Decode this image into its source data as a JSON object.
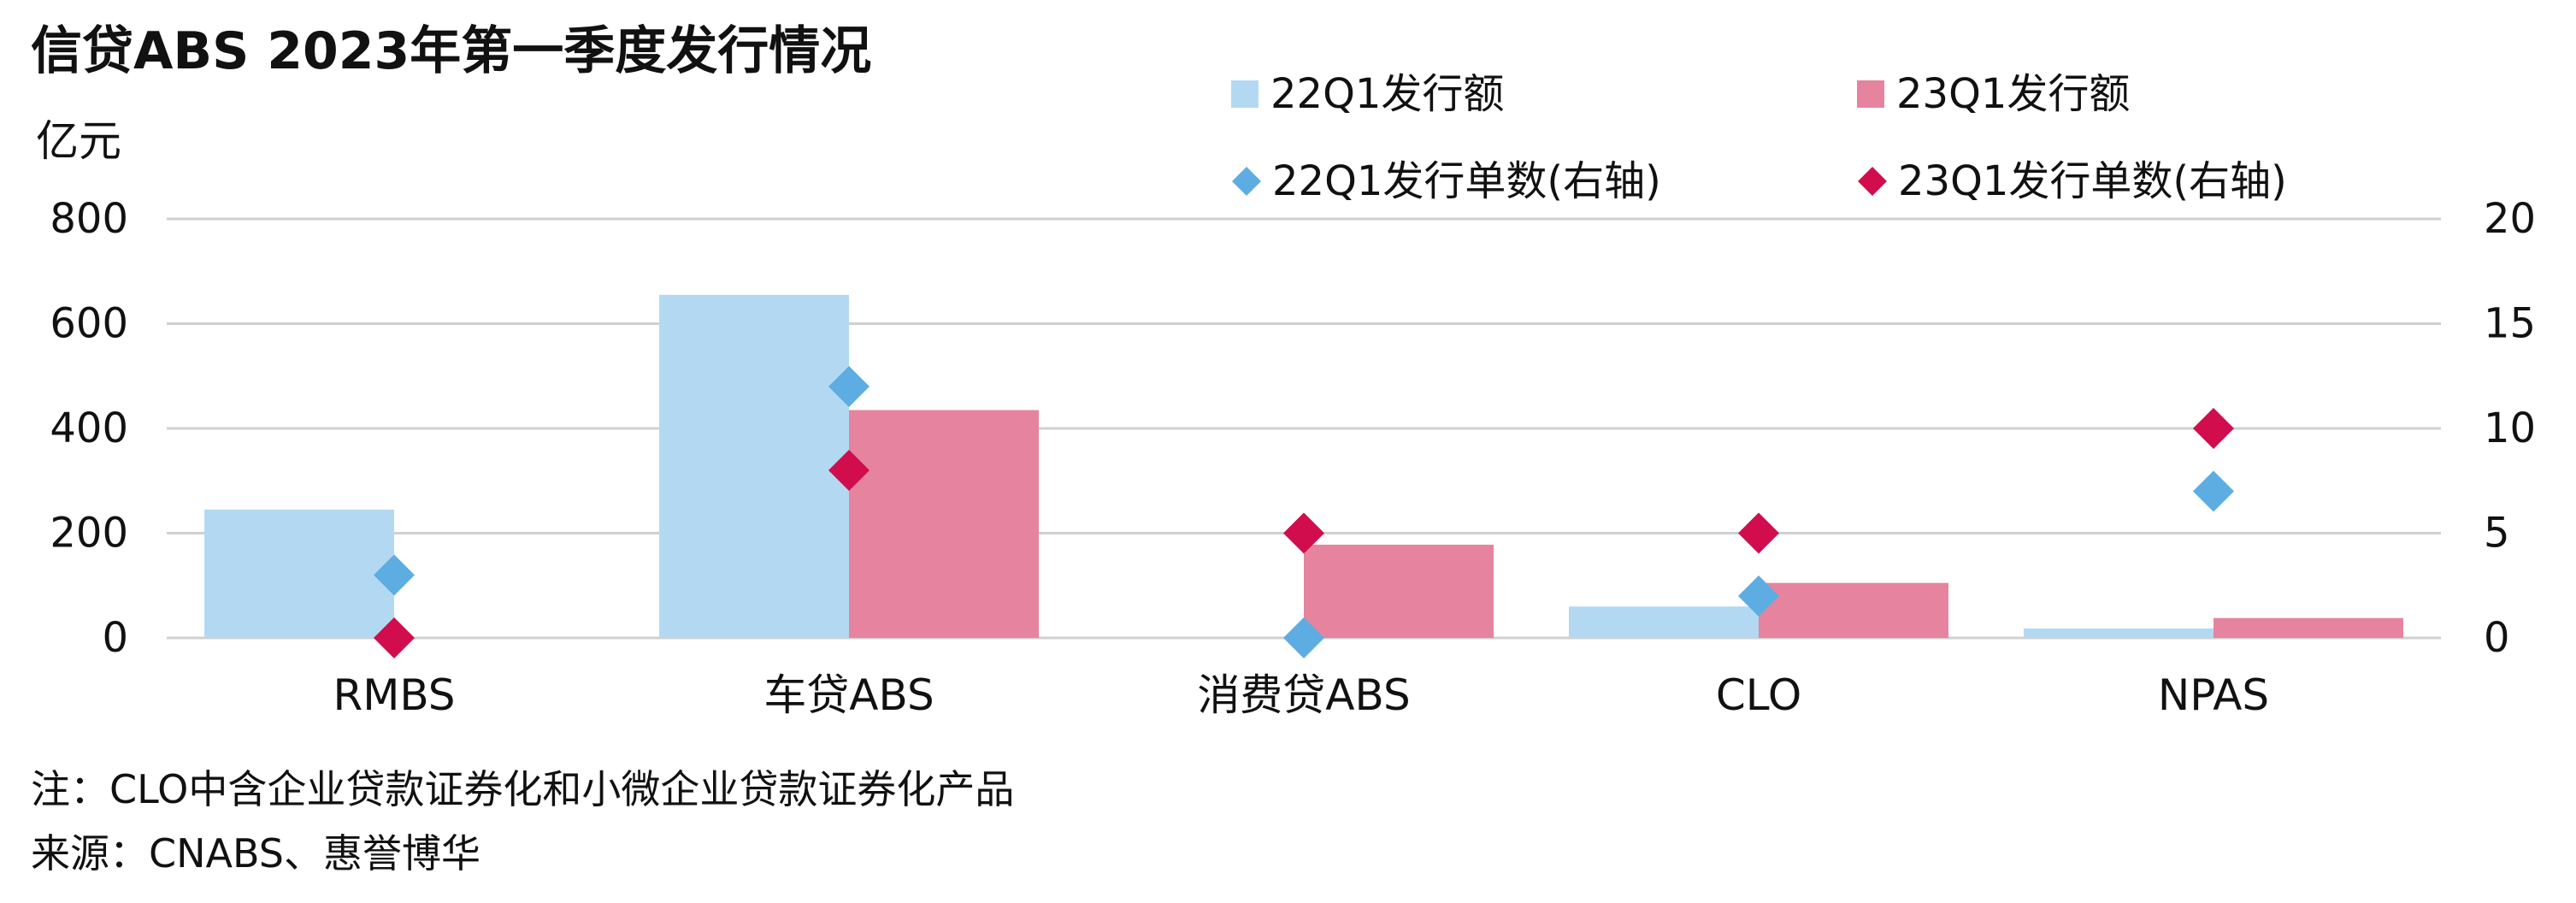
{
  "title": "信贷ABS 2023年第一季度发行情况",
  "unit": "亿元",
  "note": "注：CLO中含企业贷款证券化和小微企业贷款证券化产品",
  "source": "来源：CNABS、惠誉博华",
  "legend": [
    {
      "label": "22Q1发行额",
      "shape": "square",
      "color": "#B3D9F2"
    },
    {
      "label": "23Q1发行额",
      "shape": "square",
      "color": "#E6849F"
    },
    {
      "label": "22Q1发行单数(右轴)",
      "shape": "diamond",
      "color": "#5DADE2"
    },
    {
      "label": "23Q1发行单数(右轴)",
      "shape": "diamond",
      "color": "#D10D4E"
    }
  ],
  "chart_data": {
    "type": "bar",
    "title": "信贷ABS 2023年第一季度发行情况",
    "ylabel": "亿元",
    "categories": [
      "RMBS",
      "车贷ABS",
      "消费贷ABS",
      "CLO",
      "NPAS"
    ],
    "ylim": [
      0,
      800
    ],
    "y_ticks": [
      "800",
      "600",
      "400",
      "200",
      "0"
    ],
    "y2lim": [
      0,
      20
    ],
    "y2_ticks": [
      "20",
      "15",
      "10",
      "5",
      "0"
    ],
    "grid": true,
    "legend_position": "top-right",
    "series": [
      {
        "name": "22Q1发行额",
        "type": "bar",
        "axis": "left",
        "color": "#B3D9F2",
        "values": [
          245,
          655,
          0,
          60,
          18
        ]
      },
      {
        "name": "23Q1发行额",
        "type": "bar",
        "axis": "left",
        "color": "#E6849F",
        "values": [
          0,
          435,
          178,
          105,
          38
        ]
      },
      {
        "name": "22Q1发行单数(右轴)",
        "type": "scatter",
        "axis": "right",
        "color": "#5DADE2",
        "values": [
          3,
          12,
          0,
          2,
          7
        ]
      },
      {
        "name": "23Q1发行单数(右轴)",
        "type": "scatter",
        "axis": "right",
        "color": "#D10D4E",
        "values": [
          0,
          8,
          5,
          5,
          10
        ]
      }
    ]
  }
}
